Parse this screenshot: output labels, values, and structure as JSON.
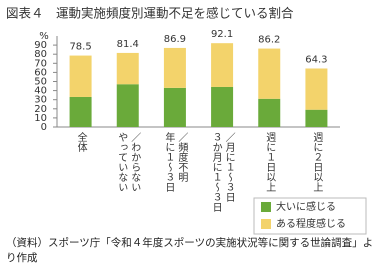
{
  "chart_data": {
    "type": "stacked-bar",
    "title": "図表４　運動実施頻度別運動不足を感じている割合",
    "y_unit": "%",
    "categories": [
      [
        "全体"
      ],
      [
        "やっていない",
        "／わからない"
      ],
      [
        "年に１～３日",
        "／頻度不明"
      ],
      [
        "３か月に１～３日",
        "／月に１～３日"
      ],
      [
        "週に１日以上"
      ],
      [
        "週に２日以上"
      ]
    ],
    "series": [
      {
        "name": "大いに感じる",
        "color": "#6aaa3a",
        "values": [
          33,
          47,
          43,
          44,
          31,
          19
        ]
      },
      {
        "name": "ある程度感じる",
        "color": "#f3d36b",
        "values": [
          45.5,
          34.4,
          43.9,
          48.1,
          55.2,
          45.3
        ]
      }
    ],
    "totals": [
      78.5,
      81.4,
      86.9,
      92.1,
      86.2,
      64.3
    ],
    "ylim": [
      0,
      100
    ],
    "yticks": [
      0,
      10,
      20,
      30,
      40,
      50,
      60,
      70,
      80,
      90
    ],
    "legend": "lower right",
    "source": "（資料）スポーツ庁「令和４年度スポーツの実施状況等に関する世論調査」より作成"
  }
}
